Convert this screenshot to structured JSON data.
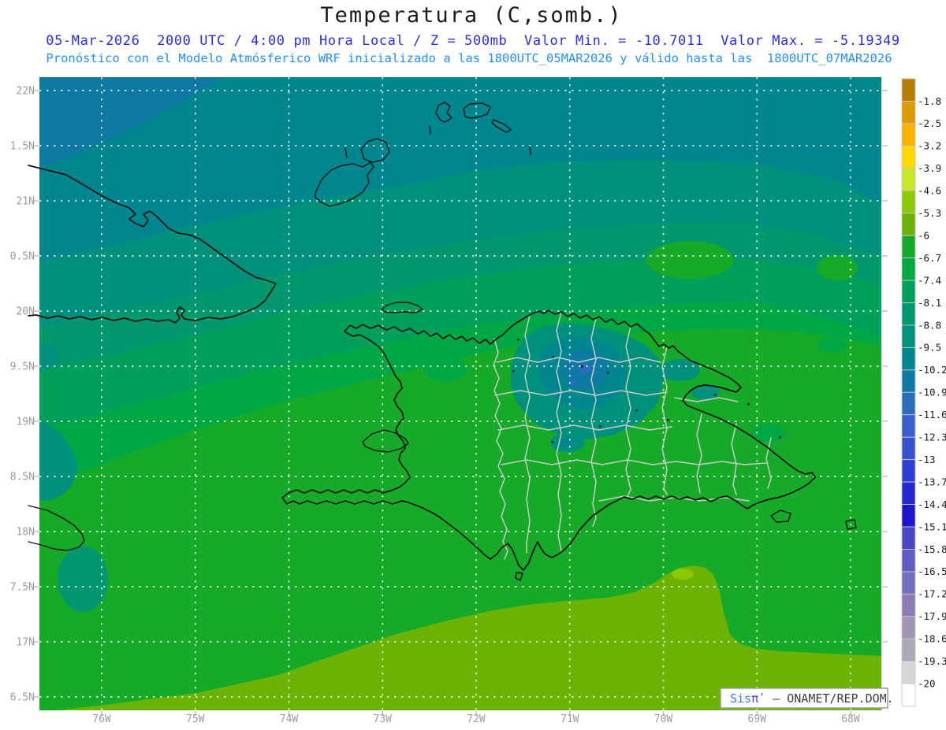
{
  "header": {
    "title": "Temperatura (C,somb.)",
    "title_color": "#1a1a1a",
    "line2": "05-Mar-2026  2000 UTC / 4:00 pm Hora Local / Z = 500mb  Valor Min. = -10.7011  Valor Max. = -5.19349",
    "line2_color": "#2b2bf0",
    "line3": "Pronóstico con el Modelo Atmósferico WRF inicializado a las 1800UTC_05MAR2026 y válido hasta las  1800UTC_07MAR2026",
    "line3_color": "#1e90ff"
  },
  "stats": {
    "valor_min": -10.7011,
    "valor_max": -5.19349,
    "level": "500mb",
    "units": "C"
  },
  "axes": {
    "lat_labels": [
      "22N",
      "1.5N",
      "21N",
      "0.5N",
      "20N",
      "9.5N",
      "19N",
      "8.5N",
      "18N",
      "7.5N",
      "17N",
      "6.5N"
    ],
    "lon_labels": [
      "76W",
      "75W",
      "74W",
      "73W",
      "72W",
      "71W",
      "70W",
      "69W",
      "68W"
    ],
    "label_color": "#9b9b9b"
  },
  "colorbar": {
    "labels": [
      "-1.8",
      "-2.5",
      "-3.2",
      "-3.9",
      "-4.6",
      "-5.3",
      "-6",
      "-6.7",
      "-7.4",
      "-8.1",
      "-8.8",
      "-9.5",
      "-10.2",
      "-10.9",
      "-11.6",
      "-12.3",
      "-13",
      "-13.7",
      "-14.4",
      "-15.1",
      "-15.8",
      "-16.5",
      "-17.2",
      "-17.9",
      "-18.6",
      "-19.3",
      "-20"
    ],
    "colors": [
      "#b87c00",
      "#dc9a00",
      "#f9b000",
      "#ffd900",
      "#c9e52a",
      "#8cc800",
      "#6db306",
      "#16aa28",
      "#00a843",
      "#00a05a",
      "#00986c",
      "#00917d",
      "#00868e",
      "#0e7aa4",
      "#2b6cbd",
      "#3a5ecb",
      "#3750d0",
      "#2e3ed1",
      "#2629d0",
      "#1d14cf",
      "#4a46c6",
      "#615cc2",
      "#7570be",
      "#8d7cb4",
      "#a095b2",
      "#abaab2",
      "#d6d6d8",
      "#ffffff"
    ],
    "label_color": "#1a1a1a"
  },
  "logo": {
    "sis": "Sis",
    "pi": "πʹ",
    "rest": " – ONAMET/REP.DOM.",
    "sis_color": "#2e7bf7",
    "pi_color": "#4a3fd9",
    "rest_color": "#3c3c3c"
  },
  "chart_data": {
    "type": "heatmap",
    "variable": "Temperatura (C,somb.)",
    "level": "500mb",
    "valor_min": -10.7011,
    "valor_max": -5.19349,
    "scale_ticks": [
      -1.8,
      -2.5,
      -3.2,
      -3.9,
      -4.6,
      -5.3,
      -6,
      -6.7,
      -7.4,
      -8.1,
      -8.8,
      -9.5,
      -10.2,
      -10.9,
      -11.6,
      -12.3,
      -13,
      -13.7,
      -14.4,
      -15.1,
      -15.8,
      -16.5,
      -17.2,
      -17.9,
      -18.6,
      -19.3,
      -20
    ],
    "lat_range": [
      "16.5N",
      "22N"
    ],
    "lon_range": [
      "76W",
      "68W"
    ]
  }
}
